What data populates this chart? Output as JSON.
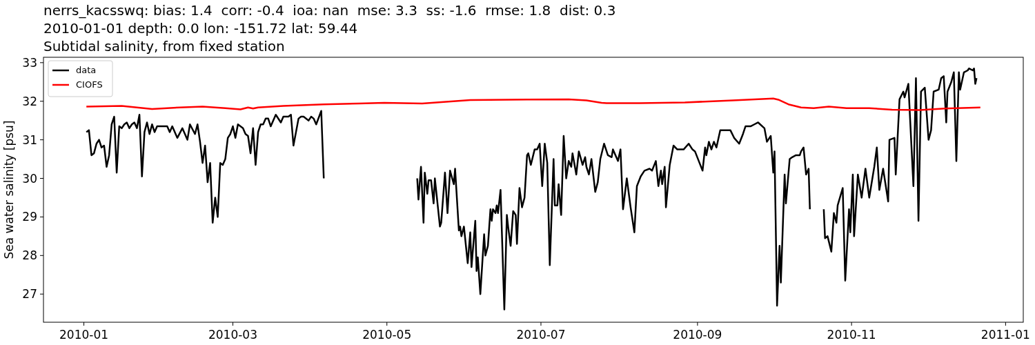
{
  "chart_data": {
    "type": "line",
    "title": "nerrs_kacsswq: bias: 1.4  corr: -0.4  ioa: nan  mse: 3.3  ss: -1.6  rmse: 1.8  dist: 0.3",
    "subtitle": "2010-01-01 depth: 0.0 lon: -151.72 lat: 59.44\nSubtidal salinity, from fixed station",
    "ylabel": "Sea water salinity [psu]",
    "xlim": [
      "2009-12-16",
      "2011-01-08"
    ],
    "ylim": [
      26.27,
      33.14
    ],
    "xticks": [
      {
        "value": "2010-01-01",
        "label": "2010-01"
      },
      {
        "value": "2010-03-01",
        "label": "2010-03"
      },
      {
        "value": "2010-05-01",
        "label": "2010-05"
      },
      {
        "value": "2010-07-01",
        "label": "2010-07"
      },
      {
        "value": "2010-09-01",
        "label": "2010-09"
      },
      {
        "value": "2010-11-01",
        "label": "2010-11"
      },
      {
        "value": "2011-01-01",
        "label": "2011-01"
      }
    ],
    "yticks": [
      27,
      28,
      29,
      30,
      31,
      32,
      33
    ],
    "legend": "top left",
    "series": [
      {
        "name": "data",
        "color": "#000000",
        "x": [
          "2010-01-02",
          "2010-01-03",
          "2010-01-04",
          "2010-01-05",
          "2010-01-06",
          "2010-01-07",
          "2010-01-08",
          "2010-01-09",
          "2010-01-10",
          "2010-01-11",
          "2010-01-12",
          "2010-01-13",
          "2010-01-14",
          "2010-01-15",
          "2010-01-16",
          "2010-01-17",
          "2010-01-18",
          "2010-01-19",
          "2010-01-20",
          "2010-01-21",
          "2010-01-22",
          "2010-01-23",
          "2010-01-24",
          "2010-01-25",
          "2010-01-26",
          "2010-01-27",
          "2010-01-28",
          "2010-01-29",
          "2010-01-30",
          "2010-01-31",
          "2010-02-02",
          "2010-02-03",
          "2010-02-04",
          "2010-02-05",
          "2010-02-07",
          "2010-02-09",
          "2010-02-11",
          "2010-02-12",
          "2010-02-14",
          "2010-02-15",
          "2010-02-16",
          "2010-02-17",
          "2010-02-18",
          "2010-02-19",
          "2010-02-20",
          "2010-02-21",
          "2010-02-22",
          "2010-02-23",
          "2010-02-24",
          "2010-02-25",
          "2010-02-26",
          "2010-02-27",
          "2010-02-28",
          "2010-03-01",
          "2010-03-02",
          "2010-03-03",
          "2010-03-05",
          "2010-03-06",
          "2010-03-07",
          "2010-03-08",
          "2010-03-09",
          "2010-03-10",
          "2010-03-11",
          "2010-03-12",
          "2010-03-13",
          "2010-03-14",
          "2010-03-15",
          "2010-03-16",
          "2010-03-18",
          "2010-03-20",
          "2010-03-21",
          "2010-03-23",
          "2010-03-24",
          "2010-03-25",
          "2010-03-27",
          "2010-03-28",
          "2010-03-29",
          "2010-03-31",
          "2010-04-01",
          "2010-04-02",
          "2010-04-03",
          "2010-04-05",
          "2010-04-06",
          "2010-04-20",
          "2010-05-13",
          "2010-05-13T12:00",
          "2010-05-14T12:00",
          "2010-05-15T12:00",
          "2010-05-16",
          "2010-05-17",
          "2010-05-17T12:00",
          "2010-05-18T12:00",
          "2010-05-19T12:00",
          "2010-05-20",
          "2010-05-22",
          "2010-05-22T12:00",
          "2010-05-24",
          "2010-05-25",
          "2010-05-26",
          "2010-05-27T12:00",
          "2010-05-28",
          "2010-05-29T12:00",
          "2010-05-30",
          "2010-05-30T12:00",
          "2010-05-31T12:00",
          "2010-06-02",
          "2010-06-03",
          "2010-06-03T12:00",
          "2010-06-05",
          "2010-06-05T12:00",
          "2010-06-06",
          "2010-06-07",
          "2010-06-08T12:00",
          "2010-06-09",
          "2010-06-10",
          "2010-06-11",
          "2010-06-11T12:00",
          "2010-06-12",
          "2010-06-13",
          "2010-06-13T12:00",
          "2010-06-14",
          "2010-06-15",
          "2010-06-16T12:00",
          "2010-06-17T12:00",
          "2010-06-18",
          "2010-06-19",
          "2010-06-20",
          "2010-06-21",
          "2010-06-21T12:00",
          "2010-06-22T12:00",
          "2010-06-23T12:00",
          "2010-06-24T12:00",
          "2010-06-25T12:00",
          "2010-06-26",
          "2010-06-27",
          "2010-06-28T12:00",
          "2010-06-29T12:00",
          "2010-06-30T12:00",
          "2010-07-01T12:00",
          "2010-07-02T12:00",
          "2010-07-03T12:00",
          "2010-07-04T12:00",
          "2010-07-06",
          "2010-07-06T12:00",
          "2010-07-07T12:00",
          "2010-07-08",
          "2010-07-09",
          "2010-07-10",
          "2010-07-11",
          "2010-07-12",
          "2010-07-13",
          "2010-07-13T12:00",
          "2010-07-15",
          "2010-07-16",
          "2010-07-17T12:00",
          "2010-07-18T12:00",
          "2010-07-19",
          "2010-07-20",
          "2010-07-21",
          "2010-07-22T12:00",
          "2010-07-23T12:00",
          "2010-07-24T12:00",
          "2010-07-26",
          "2010-07-27T12:00",
          "2010-07-29",
          "2010-07-29T12:00",
          "2010-07-31T12:00",
          "2010-08-01T12:00",
          "2010-08-02T12:00",
          "2010-08-04",
          "2010-08-05T12:00",
          "2010-08-07",
          "2010-08-08",
          "2010-08-09T12:00",
          "2010-08-11",
          "2010-08-13",
          "2010-08-14",
          "2010-08-15T12:00",
          "2010-08-16T12:00",
          "2010-08-17T12:00",
          "2010-08-18",
          "2010-08-19",
          "2010-08-19T12:00",
          "2010-08-21",
          "2010-08-22T12:00",
          "2010-08-24",
          "2010-08-25",
          "2010-08-26T12:00",
          "2010-08-28T12:00",
          "2010-08-30",
          "2010-08-31",
          "2010-09-01T12:00",
          "2010-09-03",
          "2010-09-04",
          "2010-09-04T12:00",
          "2010-09-05T12:00",
          "2010-09-06T12:00",
          "2010-09-07T12:00",
          "2010-09-08T12:00",
          "2010-09-10",
          "2010-09-12",
          "2010-09-14",
          "2010-09-15T12:00",
          "2010-09-17T12:00",
          "2010-09-19",
          "2010-09-20",
          "2010-09-22",
          "2010-09-23T12:00",
          "2010-09-25",
          "2010-09-27T12:00",
          "2010-09-28T12:00",
          "2010-09-30",
          "2010-10-01",
          "2010-10-01T12:00",
          "2010-10-02T12:00",
          "2010-10-03T12:00",
          "2010-10-04",
          "2010-10-05T12:00",
          "2010-10-06",
          "2010-10-07T12:00",
          "2010-10-08T12:00",
          "2010-10-10",
          "2010-10-11T12:00",
          "2010-10-12",
          "2010-10-13",
          "2010-10-14",
          "2010-10-15",
          "2010-10-15T12:00",
          "2010-10-18",
          "2010-10-21",
          "2010-10-21T12:00",
          "2010-10-22T12:00",
          "2010-10-24",
          "2010-10-25",
          "2010-10-26",
          "2010-10-26T12:00",
          "2010-10-28T12:00",
          "2010-10-29T12:00",
          "2010-10-31",
          "2010-10-31T12:00",
          "2010-11-01T12:00",
          "2010-11-02",
          "2010-11-03T12:00",
          "2010-11-05",
          "2010-11-06T12:00",
          "2010-11-08",
          "2010-11-10",
          "2010-11-11",
          "2010-11-12",
          "2010-11-13T12:00",
          "2010-11-15T12:00",
          "2010-11-16",
          "2010-11-18",
          "2010-11-18T12:00",
          "2010-11-20",
          "2010-11-21T12:00",
          "2010-11-22",
          "2010-11-23T12:00",
          "2010-11-25T12:00",
          "2010-11-26T12:00",
          "2010-11-27T12:00",
          "2010-11-28T12:00",
          "2010-11-30",
          "2010-12-01T12:00",
          "2010-12-02T12:00",
          "2010-12-03T12:00",
          "2010-12-05T12:00",
          "2010-12-06T12:00",
          "2010-12-07T12:00",
          "2010-12-08T12:00",
          "2010-12-09",
          "2010-12-10T12:00",
          "2010-12-11T12:00",
          "2010-12-12T12:00",
          "2010-12-13T12:00",
          "2010-12-14",
          "2010-12-15T12:00",
          "2010-12-17",
          "2010-12-17T12:00",
          "2010-12-19",
          "2010-12-19T12:00",
          "2010-12-20",
          "2010-12-20T12:00"
        ],
        "values": [
          31.2,
          31.25,
          30.6,
          30.65,
          30.9,
          31.0,
          30.8,
          30.85,
          30.3,
          30.6,
          31.4,
          31.6,
          30.15,
          31.35,
          31.3,
          31.4,
          31.45,
          31.3,
          31.4,
          31.45,
          31.3,
          31.65,
          30.05,
          31.2,
          31.45,
          31.15,
          31.4,
          31.2,
          31.35,
          31.35,
          31.35,
          31.35,
          31.2,
          31.35,
          31.05,
          31.3,
          31.0,
          31.4,
          31.15,
          31.4,
          30.95,
          30.4,
          30.85,
          29.9,
          30.4,
          28.85,
          29.5,
          29.0,
          30.4,
          30.35,
          30.5,
          31.05,
          31.15,
          31.35,
          31.05,
          31.4,
          31.3,
          31.15,
          31.1,
          30.65,
          31.3,
          30.35,
          31.2,
          31.4,
          31.4,
          31.55,
          31.55,
          31.35,
          31.65,
          31.45,
          31.6,
          31.6,
          31.65,
          30.85,
          31.55,
          31.6,
          31.6,
          31.5,
          31.6,
          31.55,
          31.4,
          31.75,
          30.0,
          null,
          30.0,
          29.45,
          30.3,
          28.85,
          30.15,
          29.6,
          29.95,
          29.95,
          29.35,
          30.0,
          28.75,
          28.85,
          30.15,
          29.1,
          30.2,
          29.85,
          30.25,
          28.65,
          28.75,
          28.5,
          28.75,
          27.8,
          28.6,
          27.7,
          28.9,
          27.6,
          27.95,
          27.0,
          28.55,
          28.0,
          28.25,
          29.2,
          28.9,
          29.2,
          29.1,
          29.3,
          29.1,
          29.7,
          26.6,
          29.05,
          28.75,
          28.25,
          29.15,
          29.05,
          28.3,
          29.75,
          29.25,
          29.5,
          30.6,
          30.65,
          30.35,
          30.75,
          30.75,
          30.9,
          29.8,
          30.9,
          30.4,
          27.75,
          30.5,
          29.3,
          29.3,
          29.85,
          29.05,
          31.1,
          30.0,
          30.45,
          30.3,
          30.65,
          30.1,
          30.7,
          30.35,
          30.55,
          30.3,
          30.1,
          30.5,
          29.65,
          29.9,
          30.5,
          30.9,
          30.6,
          30.55,
          30.75,
          30.45,
          30.75,
          29.2,
          30.0,
          29.25,
          28.6,
          29.8,
          30.05,
          30.2,
          30.25,
          30.2,
          30.45,
          29.8,
          30.2,
          29.85,
          30.3,
          29.25,
          30.35,
          30.85,
          30.75,
          30.75,
          30.75,
          30.9,
          30.75,
          30.7,
          30.45,
          30.2,
          30.8,
          30.6,
          30.95,
          30.75,
          30.95,
          30.8,
          31.25,
          31.25,
          31.25,
          31.05,
          30.9,
          31.15,
          31.35,
          31.35,
          31.4,
          31.45,
          31.3,
          30.95,
          31.1,
          30.15,
          30.7,
          26.7,
          28.25,
          27.3,
          30.1,
          29.35,
          30.5,
          30.55,
          30.6,
          30.6,
          30.7,
          30.8,
          30.1,
          30.25,
          29.2,
          null,
          29.2,
          28.45,
          28.5,
          28.1,
          29.1,
          28.85,
          29.3,
          29.75,
          27.35,
          29.2,
          28.6,
          30.1,
          28.5,
          30.1,
          29.5,
          30.25,
          29.5,
          30.3,
          30.8,
          29.7,
          30.25,
          29.4,
          31.0,
          31.05,
          30.1,
          32.05,
          32.25,
          32.1,
          32.45,
          29.8,
          32.6,
          28.9,
          32.25,
          32.35,
          31.0,
          31.25,
          32.25,
          32.3,
          32.6,
          32.65,
          31.45,
          32.25,
          32.5,
          32.75,
          30.45,
          32.75,
          32.3,
          32.75,
          32.8,
          32.85,
          32.8,
          32.85,
          32.45,
          32.6
        ]
      },
      {
        "name": "CIOFS",
        "color": "#ff0000",
        "x": [
          "2010-01-02",
          "2010-01-16",
          "2010-01-28",
          "2010-02-08",
          "2010-02-17",
          "2010-02-26",
          "2010-03-04",
          "2010-03-07",
          "2010-03-09",
          "2010-03-11",
          "2010-03-21",
          "2010-04-06",
          "2010-04-20",
          "2010-04-30",
          "2010-05-15",
          "2010-06-03",
          "2010-06-18",
          "2010-07-12",
          "2010-07-19",
          "2010-07-25",
          "2010-07-27",
          "2010-08-09",
          "2010-08-27",
          "2010-09-15",
          "2010-10-01",
          "2010-10-03",
          "2010-10-07",
          "2010-10-12",
          "2010-10-17",
          "2010-10-23",
          "2010-10-30",
          "2010-11-08",
          "2010-11-17",
          "2010-11-28",
          "2010-12-08",
          "2010-12-22"
        ],
        "values": [
          31.86,
          31.88,
          31.8,
          31.84,
          31.86,
          31.82,
          31.79,
          31.84,
          31.81,
          31.84,
          31.88,
          31.92,
          31.94,
          31.96,
          31.94,
          32.03,
          32.04,
          32.05,
          32.02,
          31.96,
          31.95,
          31.95,
          31.97,
          32.02,
          32.07,
          32.04,
          31.92,
          31.84,
          31.82,
          31.86,
          31.82,
          31.82,
          31.78,
          31.77,
          31.81,
          31.84
        ]
      }
    ]
  }
}
